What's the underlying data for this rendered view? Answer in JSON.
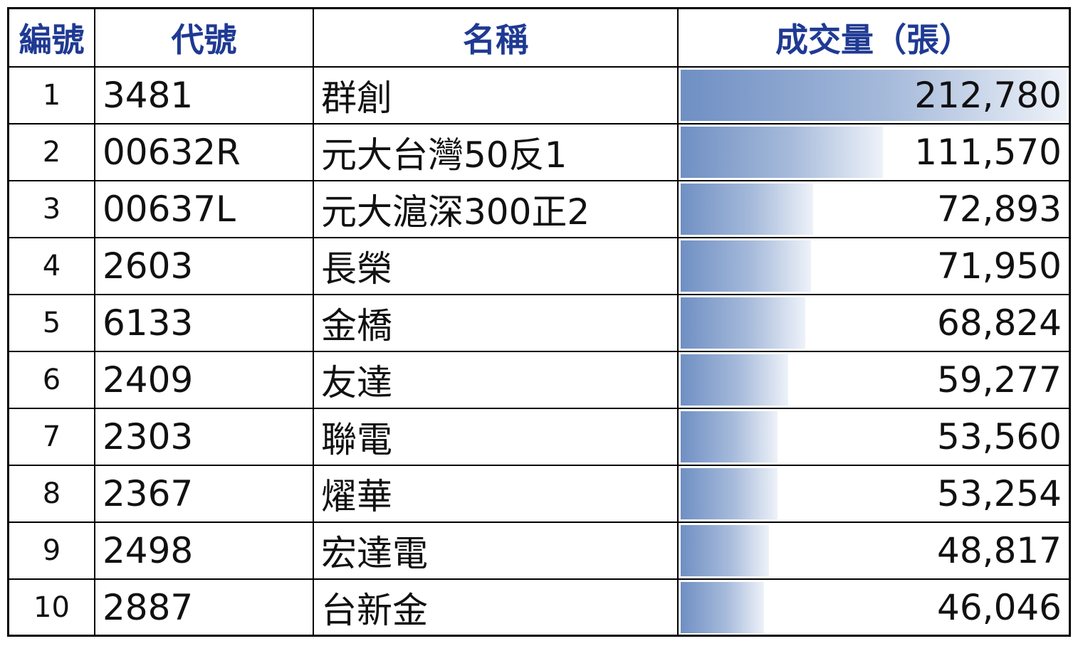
{
  "headers": {
    "rank": "編號",
    "code": "代號",
    "name": "名稱",
    "volume": "成交量（張）"
  },
  "rows": [
    {
      "rank": "1",
      "code": "3481",
      "name": "群創",
      "volume": "212,780",
      "value": 212780
    },
    {
      "rank": "2",
      "code": "00632R",
      "name": "元大台灣50反1",
      "volume": "111,570",
      "value": 111570
    },
    {
      "rank": "3",
      "code": "00637L",
      "name": "元大滬深300正2",
      "volume": "72,893",
      "value": 72893
    },
    {
      "rank": "4",
      "code": "2603",
      "name": "長榮",
      "volume": "71,950",
      "value": 71950
    },
    {
      "rank": "5",
      "code": "6133",
      "name": "金橋",
      "volume": "68,824",
      "value": 68824
    },
    {
      "rank": "6",
      "code": "2409",
      "name": "友達",
      "volume": "59,277",
      "value": 59277
    },
    {
      "rank": "7",
      "code": "2303",
      "name": "聯電",
      "volume": "53,560",
      "value": 53560
    },
    {
      "rank": "8",
      "code": "2367",
      "name": "燿華",
      "volume": "53,254",
      "value": 53254
    },
    {
      "rank": "9",
      "code": "2498",
      "name": "宏達電",
      "volume": "48,817",
      "value": 48817
    },
    {
      "rank": "10",
      "code": "2887",
      "name": "台新金",
      "volume": "46,046",
      "value": 46046
    }
  ],
  "colors": {
    "header_text": "#1f3a93",
    "bar_start": "#6f8fc3",
    "bar_end": "#eef2f9",
    "border": "#000000"
  }
}
